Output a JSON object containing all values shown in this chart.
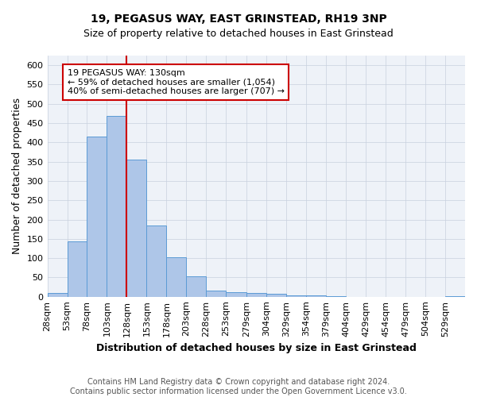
{
  "title": "19, PEGASUS WAY, EAST GRINSTEAD, RH19 3NP",
  "subtitle": "Size of property relative to detached houses in East Grinstead",
  "xlabel": "Distribution of detached houses by size in East Grinstead",
  "ylabel": "Number of detached properties",
  "bin_labels": [
    "28sqm",
    "53sqm",
    "78sqm",
    "103sqm",
    "128sqm",
    "153sqm",
    "178sqm",
    "203sqm",
    "228sqm",
    "253sqm",
    "279sqm",
    "304sqm",
    "329sqm",
    "354sqm",
    "379sqm",
    "404sqm",
    "429sqm",
    "454sqm",
    "479sqm",
    "504sqm",
    "529sqm"
  ],
  "bar_heights": [
    10,
    143,
    415,
    468,
    355,
    185,
    102,
    53,
    16,
    12,
    10,
    7,
    3,
    4,
    1,
    0,
    0,
    0,
    0,
    0,
    2
  ],
  "bin_edges": [
    28,
    53,
    78,
    103,
    128,
    153,
    178,
    203,
    228,
    253,
    279,
    304,
    329,
    354,
    379,
    404,
    429,
    454,
    479,
    504,
    529,
    554
  ],
  "bar_color": "#aec6e8",
  "bar_edge_color": "#5b9bd5",
  "vline_x": 128,
  "vline_color": "#cc0000",
  "annotation_text_line1": "19 PEGASUS WAY: 130sqm",
  "annotation_text_line2": "← 59% of detached houses are smaller (1,054)",
  "annotation_text_line3": "40% of semi-detached houses are larger (707) →",
  "annotation_box_color": "#ffffff",
  "annotation_box_edge": "#cc0000",
  "ylim": [
    0,
    625
  ],
  "yticks": [
    0,
    50,
    100,
    150,
    200,
    250,
    300,
    350,
    400,
    450,
    500,
    550,
    600
  ],
  "footnote": "Contains HM Land Registry data © Crown copyright and database right 2024.\nContains public sector information licensed under the Open Government Licence v3.0.",
  "bg_color": "#eef2f8",
  "grid_color": "#c8d0de",
  "title_fontsize": 10,
  "subtitle_fontsize": 9,
  "label_fontsize": 9,
  "tick_fontsize": 8,
  "annotation_fontsize": 8,
  "footnote_fontsize": 7
}
